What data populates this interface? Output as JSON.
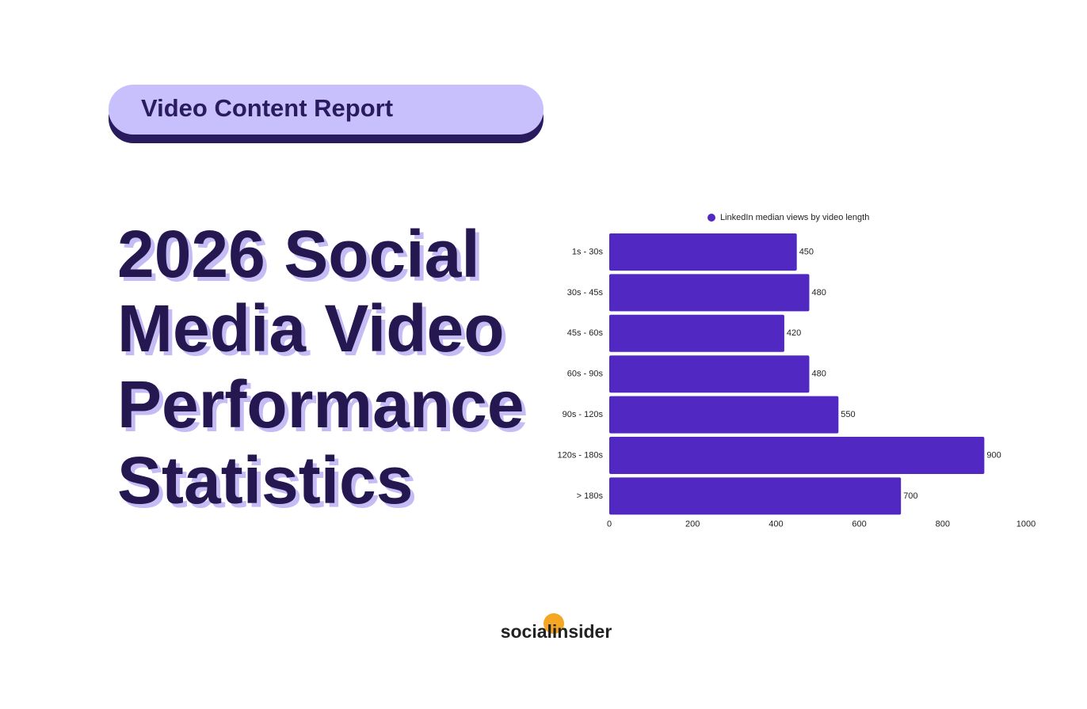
{
  "badge": "Video Content Report",
  "headline": [
    "2026 Social",
    "Media Video",
    "Performance",
    "Statistics"
  ],
  "brand": "socialinsider",
  "chart_data": {
    "type": "hbar",
    "categories": [
      "1s - 30s",
      "30s - 45s",
      "45s - 60s",
      "60s - 90s",
      "90s - 120s",
      "120s - 180s",
      "> 180s"
    ],
    "series": [
      {
        "name": "LinkedIn median views by video length",
        "color": "#5128c2",
        "values": [
          450,
          480,
          420,
          480,
          550,
          900,
          700
        ]
      }
    ],
    "xlim": [
      0,
      1000
    ],
    "xticks": [
      0,
      200,
      400,
      600,
      800,
      1000
    ],
    "grid": false,
    "legend": "top"
  }
}
